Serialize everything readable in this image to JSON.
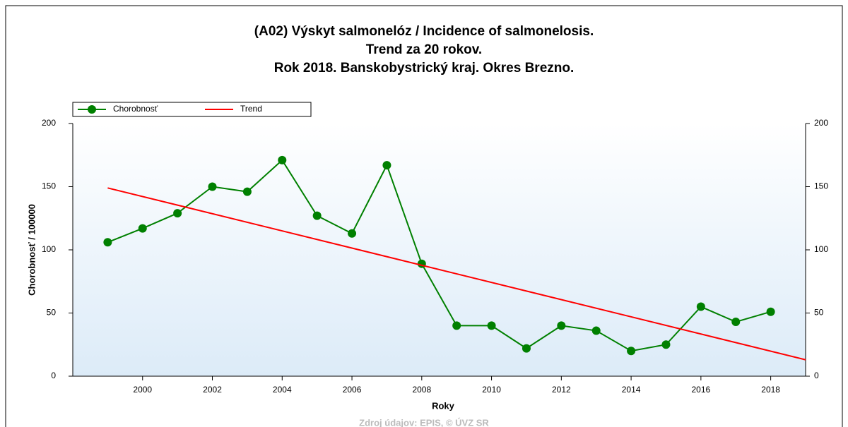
{
  "chart_data": {
    "type": "line",
    "title": [
      "(A02) Výskyt salmonelóz / Incidence of salmonelosis.",
      "Trend za 20 rokov.",
      "Rok 2018. Banskobystrický kraj. Okres Brezno."
    ],
    "xlabel": "Roky",
    "ylabel": "Chorobnosť / 100000",
    "source": "Zdroj údajov: EPIS, © ÚVZ SR",
    "xlim": [
      1998,
      2019
    ],
    "xticks": [
      2000,
      2002,
      2004,
      2006,
      2008,
      2010,
      2012,
      2014,
      2016,
      2018
    ],
    "ylim": [
      0,
      200
    ],
    "yticks": [
      0,
      50,
      100,
      150,
      200
    ],
    "y2lim": [
      0,
      200
    ],
    "y2ticks": [
      0,
      50,
      100,
      150,
      200
    ],
    "series": [
      {
        "name": "Chorobnosť",
        "color": "#008000",
        "marker": true,
        "x": [
          1999,
          2000,
          2001,
          2002,
          2003,
          2004,
          2005,
          2006,
          2007,
          2008,
          2009,
          2010,
          2011,
          2012,
          2013,
          2014,
          2015,
          2016,
          2017,
          2018
        ],
        "values": [
          106,
          117,
          129,
          150,
          146,
          171,
          127,
          113,
          167,
          89,
          40,
          40,
          22,
          40,
          36,
          20,
          25,
          55,
          43,
          51
        ]
      },
      {
        "name": "Trend",
        "color": "#ff0000",
        "marker": false,
        "x": [
          1999,
          2019
        ],
        "values": [
          149,
          13
        ]
      }
    ]
  }
}
